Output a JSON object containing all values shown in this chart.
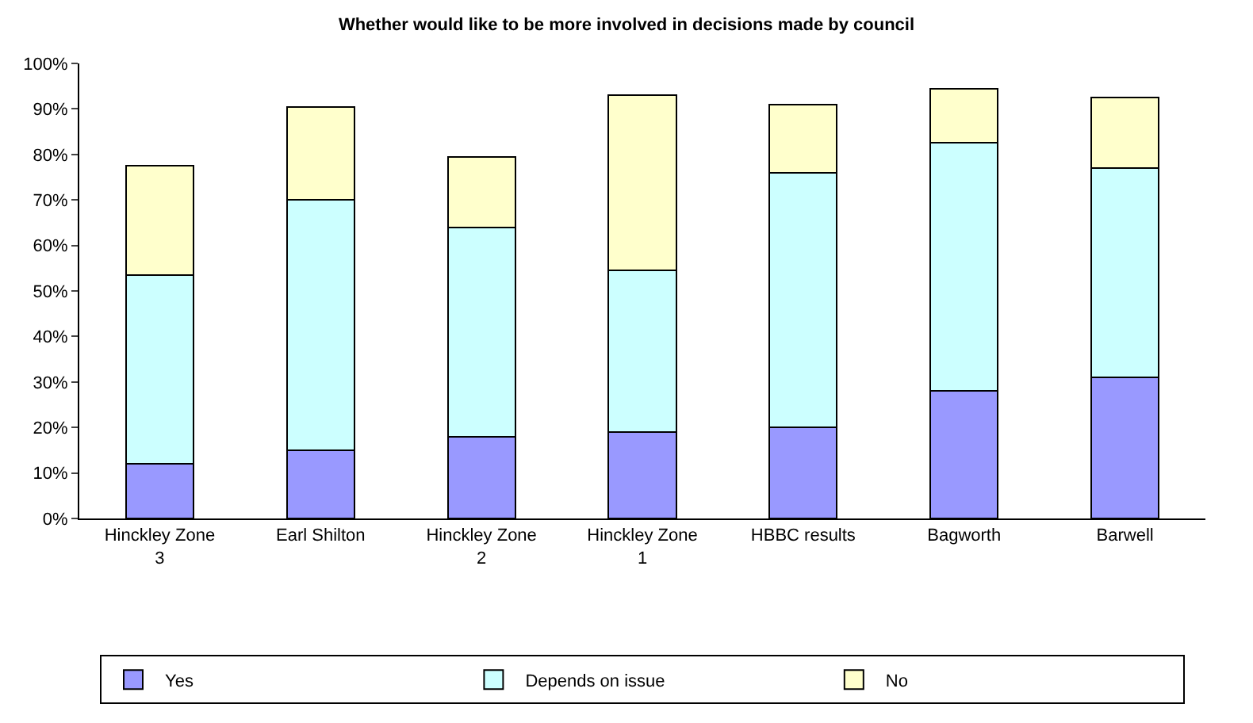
{
  "chart_data": {
    "type": "bar",
    "title": "Whether would like to be more involved in decisions made by council",
    "categories": [
      "Hinckley Zone 3",
      "Earl Shilton",
      "Hinckley Zone 2",
      "Hinckley Zone 1",
      "HBBC results",
      "Bagworth",
      "Barwell"
    ],
    "stacked": true,
    "series": [
      {
        "name": "Yes",
        "color": "#9999ff",
        "values": [
          12,
          15,
          18,
          19,
          20,
          28,
          31
        ]
      },
      {
        "name": "Depends on issue",
        "color": "#ccffff",
        "values": [
          41.5,
          55,
          46,
          35.5,
          56,
          54.5,
          46
        ]
      },
      {
        "name": "No",
        "color": "#ffffcc",
        "values": [
          24,
          20.5,
          15.5,
          38.5,
          15,
          12,
          15.5
        ]
      }
    ],
    "ylim": [
      0,
      100
    ],
    "yticks": [
      {
        "value": 0,
        "label": "0%"
      },
      {
        "value": 10,
        "label": "10%"
      },
      {
        "value": 20,
        "label": "20%"
      },
      {
        "value": 30,
        "label": "30%"
      },
      {
        "value": 40,
        "label": "40%"
      },
      {
        "value": 50,
        "label": "50%"
      },
      {
        "value": 60,
        "label": "60%"
      },
      {
        "value": 70,
        "label": "70%"
      },
      {
        "value": 80,
        "label": "80%"
      },
      {
        "value": 90,
        "label": "90%"
      },
      {
        "value": 100,
        "label": "100%"
      }
    ],
    "legend": "bottom"
  }
}
